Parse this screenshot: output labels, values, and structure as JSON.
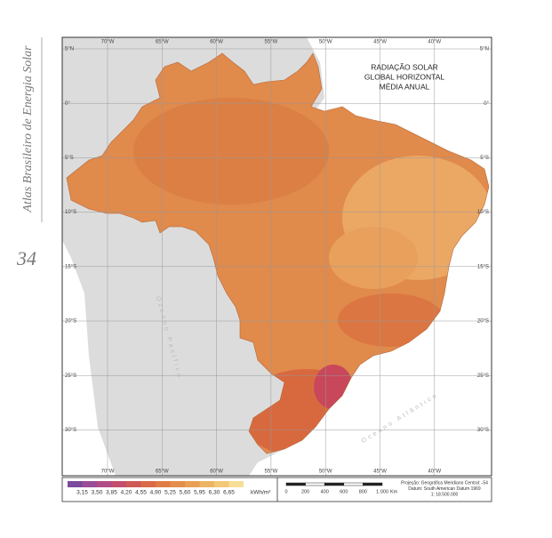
{
  "sidebar": {
    "title": "Atlas Brasileiro de Energia Solar",
    "page_number": "34"
  },
  "map": {
    "title": [
      "RADIAÇÃO SOLAR",
      "GLOBAL HORIZONTAL",
      "MÉDIA ANUAL"
    ],
    "longitudes": [
      "70°W",
      "65°W",
      "60°W",
      "55°W",
      "50°W",
      "45°W",
      "40°W"
    ],
    "latitudes": [
      "5°N",
      "0°",
      "5°S",
      "10°S",
      "15°S",
      "20°S",
      "25°S",
      "30°S"
    ],
    "ocean_labels": [
      "Oceano Pacífico",
      "Oceano Atlântico"
    ]
  },
  "legend": {
    "classes": [
      "3,15",
      "3,50",
      "3,85",
      "4,20",
      "4,55",
      "4,90",
      "5,25",
      "5,60",
      "5,95",
      "6,30",
      "6,65"
    ],
    "unit": "kWh/m²"
  },
  "scale_bar": {
    "labels": [
      "0",
      "200",
      "400",
      "600",
      "800",
      "1.000"
    ],
    "unit": "Km"
  },
  "projection": {
    "lines": [
      "Projeção: Geográfica    Meridiano Central: -54",
      "Datum: South American Datum 1969",
      "1: 18.500.000"
    ]
  }
}
